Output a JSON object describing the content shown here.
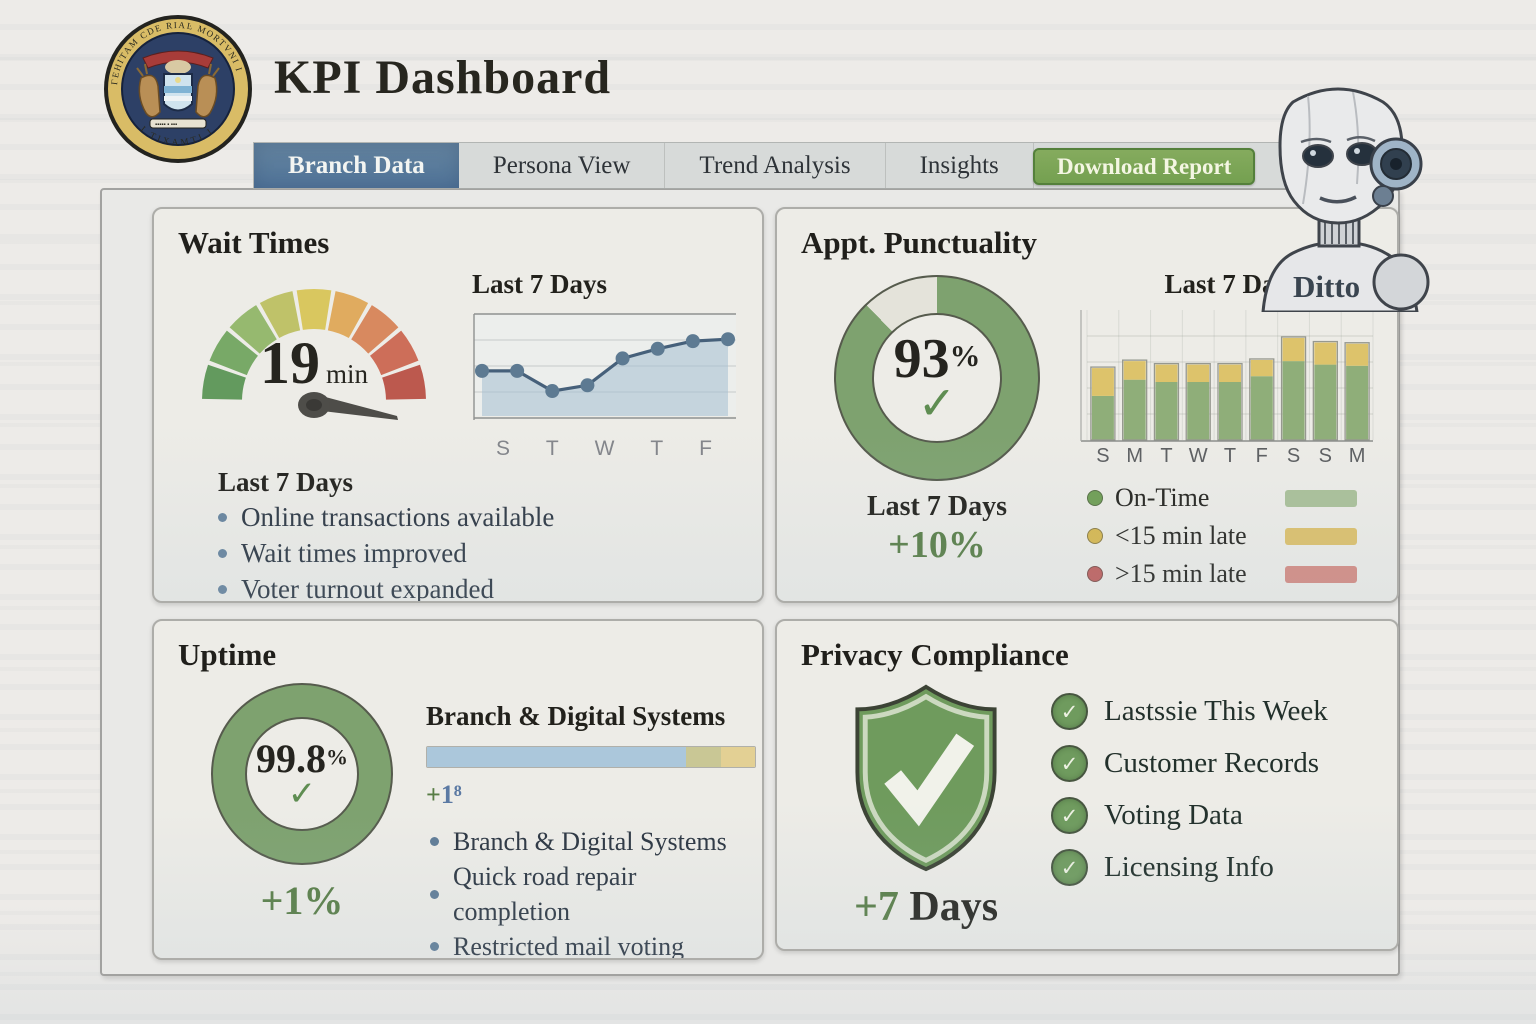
{
  "header": {
    "title": "KPI Dashboard",
    "logo_name": "state-seal",
    "robot_name": "Ditto"
  },
  "tabs": [
    {
      "label": "Branch Data",
      "active": true
    },
    {
      "label": "Persona View",
      "active": false
    },
    {
      "label": "Trend Analysis",
      "active": false
    },
    {
      "label": "Insights",
      "active": false
    }
  ],
  "download_button_label": "Download Report",
  "icons": {
    "check": "✓"
  },
  "cards": {
    "wait_times": {
      "title": "Wait Times",
      "gauge_value": "19",
      "gauge_unit": "min",
      "chart_title": "Last 7 Days",
      "list_title": "Last 7 Days",
      "bullets": [
        "Online transactions available",
        "Wait times improved",
        "Voter turnout expanded"
      ]
    },
    "punctuality": {
      "title": "Appt. Punctuality",
      "donut_value": "93",
      "donut_suffix": "%",
      "period_label": "Last 7 Days",
      "delta": "+10%",
      "chart_title": "Last 7 Days",
      "legend": [
        {
          "label": "On-Time",
          "dot": "#6f9e53",
          "swatch": "#9db88a"
        },
        {
          "label": "<15 min late",
          "dot": "#d8b84e",
          "swatch": "#d9b853"
        },
        {
          "label": ">15 min late",
          "dot": "#c05f5c",
          "swatch": "#d07a70"
        }
      ]
    },
    "uptime": {
      "title": "Uptime",
      "donut_value": "99.8",
      "donut_suffix": "%",
      "delta": "+1%",
      "progress_title": "Branch & Digital Systems",
      "bar_delta_plus": "+",
      "bar_delta_rest": "1⁸",
      "bullets": [
        "Branch & Digital Systems",
        "Quick road repair completion",
        "Restricted mail voting"
      ]
    },
    "privacy": {
      "title": "Privacy Compliance",
      "delta_plus": "+7",
      "delta_unit": " Days",
      "checklist": [
        "Lastssie This Week",
        "Customer Records",
        "Voting Data",
        "Licensing Info"
      ]
    }
  },
  "chart_data": [
    {
      "id": "wait-gauge",
      "type": "gauge",
      "card": "Wait Times",
      "value": 19,
      "unit": "min",
      "segment_colors": [
        "#639a5e",
        "#78a967",
        "#96b96f",
        "#bfc269",
        "#d9c75f",
        "#e0ab5f",
        "#d8895f",
        "#cd6e59",
        "#bc594e"
      ],
      "needle_color": "#4e4d49",
      "arc_span_deg": 180
    },
    {
      "id": "wait-trend",
      "type": "line",
      "card": "Wait Times",
      "title": "Last 7 Days",
      "x_tick_labels": [
        "S",
        "T",
        "W",
        "T",
        "F"
      ],
      "values": [
        47,
        47,
        26,
        32,
        60,
        70,
        78,
        80
      ],
      "ylim": [
        0,
        100
      ],
      "grid": true,
      "line_color": "#46607a",
      "dot_color": "#5d7a92",
      "area_color": "rgba(166,192,210,0.55)"
    },
    {
      "id": "punct-donut",
      "type": "donut",
      "card": "Appt. Punctuality",
      "value": 93,
      "display": "93%",
      "filled_deg": 316,
      "ring_color": "#7ea26f",
      "rest_color": "#e4e3da"
    },
    {
      "id": "punct-bars",
      "type": "bar",
      "stacked": true,
      "card": "Appt. Punctuality",
      "title": "Last 7 Days",
      "categories": [
        "S",
        "M",
        "T",
        "W",
        "T",
        "F",
        "S",
        "S",
        "M"
      ],
      "series": [
        {
          "name": "On-Time",
          "color": "#8fae79",
          "values": [
            38,
            52,
            50,
            50,
            50,
            55,
            68,
            65,
            64
          ]
        },
        {
          "name": "<15 min late",
          "color": "#ddc36b",
          "values": [
            24,
            16,
            15,
            15,
            15,
            14,
            20,
            19,
            19
          ]
        }
      ],
      "ylim": [
        0,
        100
      ],
      "grid": true,
      "legend_position": "below"
    },
    {
      "id": "uptime-donut",
      "type": "donut",
      "card": "Uptime",
      "value": 99.8,
      "display": "99.8%",
      "filled_deg": 360,
      "ring_color": "#7ea26f",
      "rest_color": "#7ea26f"
    },
    {
      "id": "uptime-progress",
      "type": "progress",
      "card": "Uptime",
      "label": "Branch & Digital Systems",
      "segments": [
        {
          "color": "#abc7db",
          "pct": 79
        },
        {
          "color": "#c9c795",
          "pct": 10.5
        },
        {
          "color": "#e3d094",
          "pct": 10.5
        }
      ]
    }
  ]
}
